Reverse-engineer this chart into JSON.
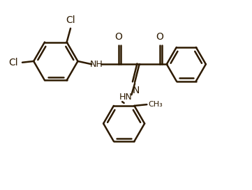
{
  "background_color": "#ffffff",
  "line_color": "#2d1a00",
  "line_width": 1.8,
  "font_size": 9,
  "figsize": [
    3.61,
    2.73
  ],
  "dpi": 100,
  "xlim": [
    0,
    10
  ],
  "ylim": [
    0,
    7.5
  ]
}
